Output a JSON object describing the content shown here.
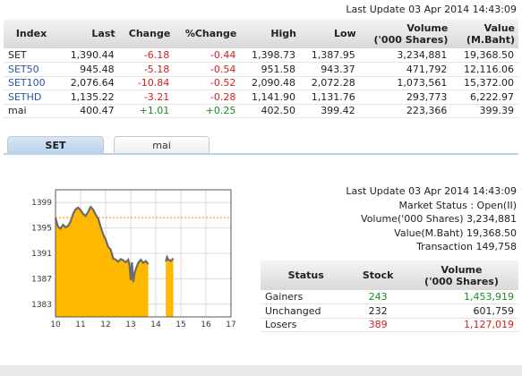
{
  "last_update": "Last Update 03 Apr 2014 14:43:09",
  "index_table": {
    "headers": {
      "index": "Index",
      "last": "Last",
      "change": "Change",
      "pct_change": "%Change",
      "high": "High",
      "low": "Low",
      "volume_line1": "Volume",
      "volume_line2": "('000 Shares)",
      "value_line1": "Value",
      "value_line2": "(M.Baht)"
    },
    "rows": [
      {
        "index": "SET",
        "last": "1,390.44",
        "change": "-6.18",
        "pct": "-0.44",
        "high": "1,398.73",
        "low": "1,387.95",
        "volume": "3,234,881",
        "value": "19,368.50"
      },
      {
        "index": "SET50",
        "last": "945.48",
        "change": "-5.18",
        "pct": "-0.54",
        "high": "951.58",
        "low": "943.37",
        "volume": "471,792",
        "value": "12,116.06"
      },
      {
        "index": "SET100",
        "last": "2,076.64",
        "change": "-10.84",
        "pct": "-0.52",
        "high": "2,090.48",
        "low": "2,072.28",
        "volume": "1,073,561",
        "value": "15,372.00"
      },
      {
        "index": "SETHD",
        "last": "1,135.22",
        "change": "-3.21",
        "pct": "-0.28",
        "high": "1,141.90",
        "low": "1,131.76",
        "volume": "293,773",
        "value": "6,222.97"
      },
      {
        "index": "mai",
        "last": "400.47",
        "change": "+1.01",
        "pct": "+0.25",
        "high": "402.50",
        "low": "399.42",
        "volume": "223,366",
        "value": "399.39"
      }
    ]
  },
  "tabs": [
    {
      "label": "SET",
      "active": true
    },
    {
      "label": "mai",
      "active": false
    }
  ],
  "market_info": {
    "last_update": "Last Update 03 Apr 2014 14:43:09",
    "market_status": "Market Status : Open(II)",
    "volume": "Volume('000 Shares) 3,234,881",
    "value": "Value(M.Baht) 19,368.50",
    "transaction": "Transaction 149,758"
  },
  "status_table": {
    "headers": {
      "status": "Status",
      "stock": "Stock",
      "volume_line1": "Volume",
      "volume_line2": "('000 Shares)"
    },
    "rows": [
      {
        "status": "Gainers",
        "stock": "243",
        "volume": "1,453,919",
        "color": "green"
      },
      {
        "status": "Unchanged",
        "stock": "232",
        "volume": "601,759",
        "color": "default"
      },
      {
        "status": "Losers",
        "stock": "389",
        "volume": "1,127,019",
        "color": "red"
      }
    ]
  },
  "colors": {
    "area_fill": "#ffb800",
    "line": "#6b6b6b",
    "prev_close_line": "#ff9a1a",
    "positive": "#1b8a1b",
    "negative": "#d42020",
    "link_blue": "#2a56a8"
  },
  "chart_data": {
    "type": "area",
    "x_ticks": [
      "10",
      "11",
      "12",
      "13",
      "14",
      "15",
      "16",
      "17"
    ],
    "y_ticks": [
      "1399",
      "1395",
      "1391",
      "1387",
      "1383"
    ],
    "xlim": [
      10,
      17
    ],
    "ylim": [
      1381,
      1401
    ],
    "prev_close": 1396.62,
    "x": [
      10.0,
      10.1,
      10.2,
      10.3,
      10.4,
      10.5,
      10.6,
      10.7,
      10.8,
      10.9,
      11.0,
      11.1,
      11.2,
      11.3,
      11.4,
      11.5,
      11.6,
      11.7,
      11.8,
      11.9,
      12.0,
      12.1,
      12.2,
      12.3,
      12.4,
      12.5,
      12.6,
      12.7,
      12.8,
      12.9,
      12.95,
      13.0,
      13.05,
      13.1,
      13.15,
      13.2,
      13.3,
      13.4,
      13.5,
      13.6,
      13.7,
      14.4,
      14.45,
      14.5,
      14.6,
      14.7
    ],
    "y": [
      1396.5,
      1395.2,
      1394.9,
      1395.5,
      1395.1,
      1395.3,
      1396.0,
      1397.2,
      1397.9,
      1398.2,
      1397.8,
      1397.2,
      1396.9,
      1397.5,
      1398.3,
      1397.9,
      1397.1,
      1396.5,
      1395.2,
      1394.0,
      1393.2,
      1392.0,
      1391.6,
      1390.2,
      1390.0,
      1389.7,
      1390.1,
      1389.9,
      1389.6,
      1390.0,
      1389.2,
      1386.8,
      1389.6,
      1386.5,
      1387.8,
      1388.5,
      1389.5,
      1390.0,
      1389.5,
      1389.8,
      1389.3,
      1389.7,
      1390.4,
      1390.0,
      1389.8,
      1390.2
    ],
    "gaps_after_index": [
      40
    ],
    "grid": true
  }
}
